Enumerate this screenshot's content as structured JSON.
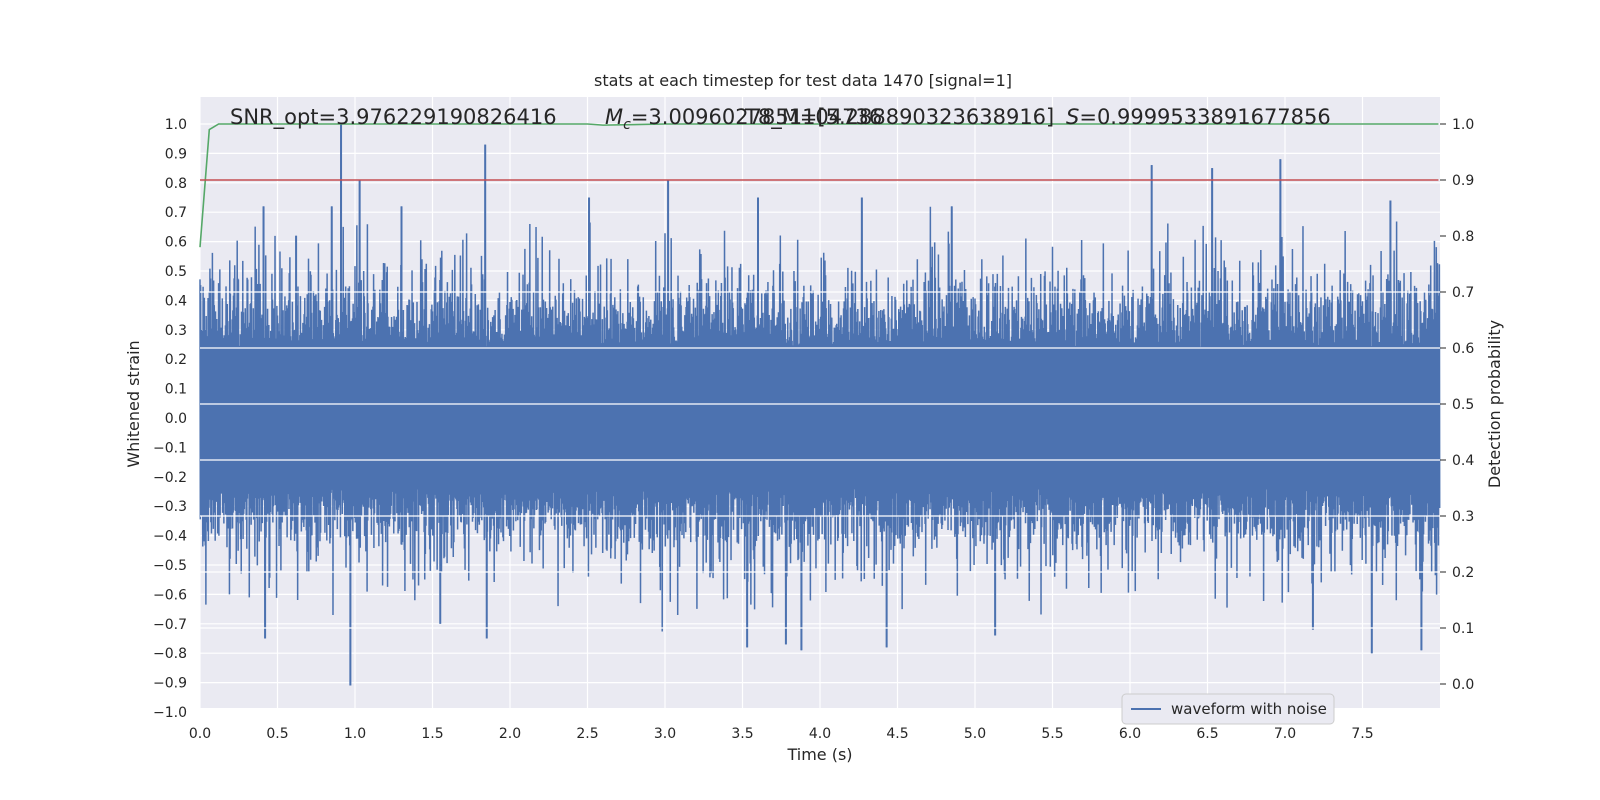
{
  "chart_data": {
    "type": "line",
    "title": "stats at each timestep for test data 1470 [signal=1]",
    "xlabel": "Time (s)",
    "ylabel": "Whitened strain",
    "ylabel_right": "Detection probability",
    "xlim": [
      0.0,
      8.0
    ],
    "ylim": [
      -1.0,
      1.0
    ],
    "ylim_right": [
      -0.05,
      1.0
    ],
    "x_ticks": [
      "0.0",
      "0.5",
      "1.0",
      "1.5",
      "2.0",
      "2.5",
      "3.0",
      "3.5",
      "4.0",
      "4.5",
      "5.0",
      "5.5",
      "6.0",
      "6.5",
      "7.0",
      "7.5"
    ],
    "y_ticks": [
      "1.0",
      "0.9",
      "0.8",
      "0.7",
      "0.6",
      "0.5",
      "0.4",
      "0.3",
      "0.2",
      "0.1",
      "0.0",
      "−0.1",
      "−0.2",
      "−0.3",
      "−0.4",
      "−0.5",
      "−0.6",
      "−0.7",
      "−0.8",
      "−0.9",
      "−1.0"
    ],
    "y_ticks_right": [
      "1.0",
      "0.9",
      "0.8",
      "0.7",
      "0.6",
      "0.5",
      "0.4",
      "0.3",
      "0.2",
      "0.1",
      "0.0"
    ],
    "grid": true,
    "legend_position": "lower-right",
    "annotations": {
      "snr": "SNR_opt=3.976229190826416",
      "mc_symbol": "M",
      "mc_sub": "c",
      "mc_value": "=3.0096027851104736",
      "tmerger": "T8_M=[5.288890323638916]",
      "s_symbol": "S",
      "s_value": "=0.9999533891677856"
    },
    "series": [
      {
        "name": "waveform with noise",
        "axis": "left",
        "color": "#4c72b0",
        "x_range": [
          0.0,
          8.0
        ],
        "envelope": {
          "low": -0.45,
          "high": 0.45
        },
        "noise_sigma": 0.22,
        "peaks": [
          {
            "x": 0.41,
            "y": 0.72
          },
          {
            "x": 0.42,
            "y": -0.75
          },
          {
            "x": 0.62,
            "y": 0.62
          },
          {
            "x": 0.85,
            "y": 0.72
          },
          {
            "x": 0.91,
            "y": 1.0
          },
          {
            "x": 0.97,
            "y": -0.91
          },
          {
            "x": 1.03,
            "y": 0.81
          },
          {
            "x": 1.3,
            "y": 0.72
          },
          {
            "x": 1.55,
            "y": -0.7
          },
          {
            "x": 1.84,
            "y": 0.93
          },
          {
            "x": 1.85,
            "y": -0.75
          },
          {
            "x": 2.51,
            "y": 0.75
          },
          {
            "x": 3.02,
            "y": 0.81
          },
          {
            "x": 3.53,
            "y": -0.78
          },
          {
            "x": 3.6,
            "y": 0.75
          },
          {
            "x": 3.78,
            "y": -0.77
          },
          {
            "x": 3.88,
            "y": -0.79
          },
          {
            "x": 4.27,
            "y": 0.75
          },
          {
            "x": 4.43,
            "y": -0.78
          },
          {
            "x": 4.85,
            "y": 0.72
          },
          {
            "x": 5.13,
            "y": -0.74
          },
          {
            "x": 6.14,
            "y": 0.86
          },
          {
            "x": 6.53,
            "y": 0.85
          },
          {
            "x": 6.97,
            "y": 0.88
          },
          {
            "x": 7.18,
            "y": -0.72
          },
          {
            "x": 7.56,
            "y": -0.8
          },
          {
            "x": 7.68,
            "y": 0.74
          },
          {
            "x": 7.88,
            "y": -0.79
          }
        ]
      },
      {
        "name": "",
        "axis": "right",
        "color": "#55a868",
        "x": [
          0.0,
          0.06,
          0.12,
          0.5,
          1.0,
          1.5,
          2.0,
          2.5,
          2.6,
          3.0,
          3.5,
          4.0,
          4.5,
          5.0,
          5.5,
          6.0,
          6.5,
          7.0,
          7.5,
          7.99
        ],
        "y": [
          0.78,
          0.99,
          1.0,
          1.0,
          1.0,
          1.0,
          1.0,
          1.0,
          0.998,
          1.0,
          1.0,
          1.0,
          1.0,
          1.0,
          1.0,
          1.0,
          1.0,
          1.0,
          1.0,
          1.0
        ]
      },
      {
        "name": "",
        "axis": "right",
        "color": "#c44e52",
        "x": [
          0.0,
          7.99
        ],
        "y": [
          0.9,
          0.9
        ]
      }
    ]
  }
}
